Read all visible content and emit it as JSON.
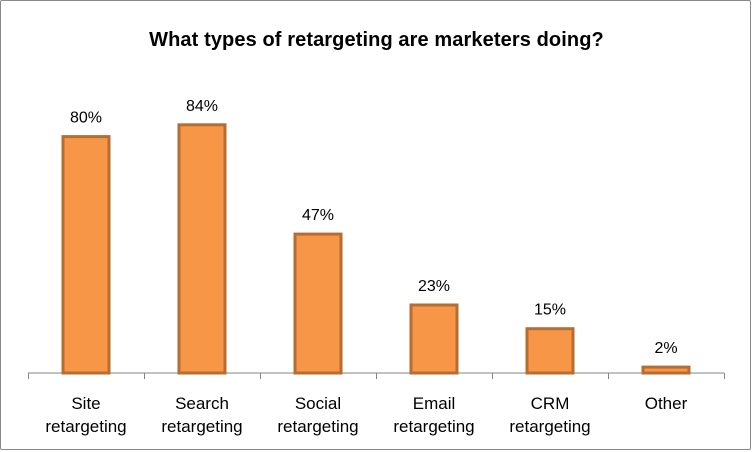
{
  "chart_data": {
    "type": "bar",
    "title": "What types of retargeting are marketers doing?",
    "xlabel": "",
    "ylabel": "",
    "categories": [
      [
        "Site",
        "retargeting"
      ],
      [
        "Search",
        "retargeting"
      ],
      [
        "Social",
        "retargeting"
      ],
      [
        "Email",
        "retargeting"
      ],
      [
        "CRM",
        "retargeting"
      ],
      [
        "Other"
      ]
    ],
    "values": [
      80,
      84,
      47,
      23,
      15,
      2
    ],
    "data_labels": [
      "80%",
      "84%",
      "47%",
      "23%",
      "15%",
      "2%"
    ],
    "ylim": [
      0,
      100
    ],
    "grid": false,
    "legend": "none",
    "colors": {
      "bar_fill": "#F79646",
      "bar_border": "#B66D31",
      "axis": "#868686"
    }
  }
}
